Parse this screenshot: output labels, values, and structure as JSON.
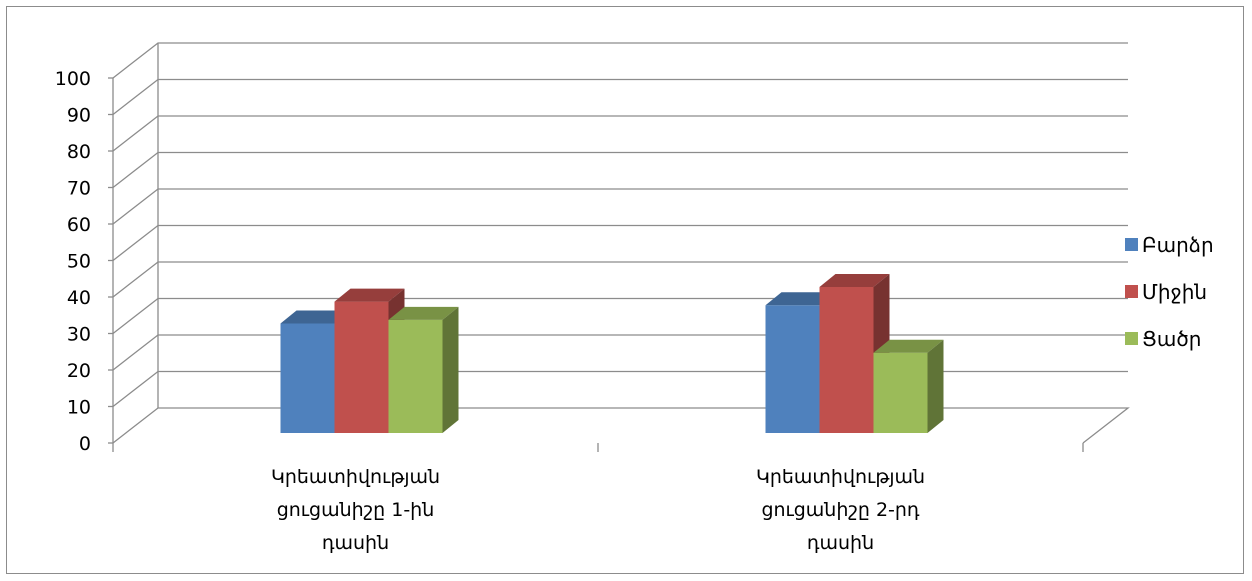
{
  "chart_data": {
    "type": "bar",
    "style": "3d-clustered-column",
    "categories": [
      [
        "Կրեատիվության",
        "ցուցանիշը 1-ին",
        "դասին"
      ],
      [
        "Կրեատիվության",
        "ցուցանիշը  2-րդ",
        "դասին"
      ]
    ],
    "series": [
      {
        "name": "Բարձր",
        "values": [
          30,
          35
        ],
        "color": "#4f81bd"
      },
      {
        "name": "Միջին",
        "values": [
          36,
          40
        ],
        "color": "#c0504d"
      },
      {
        "name": "Ցածր",
        "values": [
          31,
          22
        ],
        "color": "#9bbb59"
      }
    ],
    "y_ticks": [
      "0",
      "10",
      "20",
      "30",
      "40",
      "50",
      "60",
      "70",
      "80",
      "90",
      "100"
    ],
    "ylim": [
      0,
      100
    ],
    "grid": true,
    "legend_position": "right"
  }
}
